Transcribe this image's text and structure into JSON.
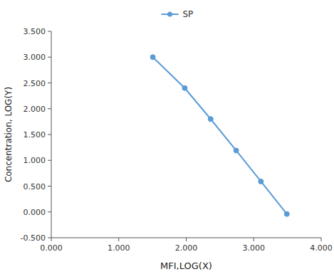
{
  "chart_data": {
    "type": "line",
    "x": [
      1.505,
      1.978,
      2.362,
      2.74,
      3.107,
      3.491
    ],
    "series": [
      {
        "name": "SP",
        "color": "#5b9bd5",
        "marker": "circle",
        "values": [
          3.0,
          2.4,
          1.8,
          1.19,
          0.59,
          -0.04
        ]
      }
    ],
    "xlabel": "MFI,LOG(X)",
    "ylabel": "Concentration, LOG(Y)",
    "xlim": [
      0.0,
      4.0
    ],
    "ylim": [
      -0.5,
      3.5
    ],
    "xticks": [
      {
        "value": 0.0,
        "label": "0.000"
      },
      {
        "value": 1.0,
        "label": "1.000"
      },
      {
        "value": 2.0,
        "label": "2.000"
      },
      {
        "value": 3.0,
        "label": "3.000"
      },
      {
        "value": 4.0,
        "label": "4.000"
      }
    ],
    "yticks": [
      {
        "value": -0.5,
        "label": "-0.500"
      },
      {
        "value": 0.0,
        "label": "0.000"
      },
      {
        "value": 0.5,
        "label": "0.500"
      },
      {
        "value": 1.0,
        "label": "1.000"
      },
      {
        "value": 1.5,
        "label": "1.500"
      },
      {
        "value": 2.0,
        "label": "2.000"
      },
      {
        "value": 2.5,
        "label": "2.500"
      },
      {
        "value": 3.0,
        "label": "3.000"
      },
      {
        "value": 3.5,
        "label": "3.500"
      }
    ],
    "grid": false,
    "legend": "top"
  }
}
